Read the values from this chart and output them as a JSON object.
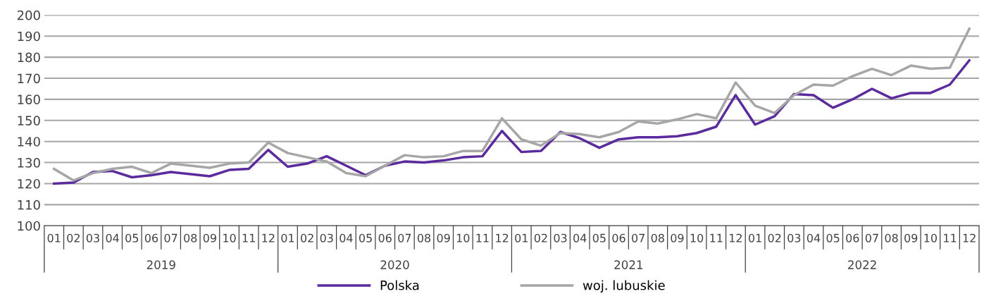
{
  "chart_data": {
    "type": "line",
    "categories": [
      "01",
      "02",
      "03",
      "04",
      "05",
      "06",
      "07",
      "08",
      "09",
      "10",
      "11",
      "12",
      "01",
      "02",
      "03",
      "04",
      "05",
      "06",
      "07",
      "08",
      "09",
      "10",
      "11",
      "12",
      "01",
      "02",
      "03",
      "04",
      "05",
      "06",
      "07",
      "08",
      "09",
      "10",
      "11",
      "12",
      "01",
      "02",
      "03",
      "04",
      "05",
      "06",
      "07",
      "08",
      "09",
      "10",
      "11",
      "12"
    ],
    "annotations": [
      "2019",
      "2020",
      "2021",
      "2022"
    ],
    "series": [
      {
        "name": "Polska",
        "color": "#5b2a9d",
        "values": [
          120,
          120.5,
          125.5,
          126,
          123,
          124,
          125.5,
          124.5,
          123.5,
          126.5,
          127,
          136,
          128,
          129.5,
          133,
          128.5,
          124,
          128.5,
          130.5,
          130,
          131,
          132.5,
          133,
          145,
          135,
          135.5,
          144.5,
          141.5,
          137,
          141,
          142,
          142,
          142.5,
          144,
          147,
          162,
          148,
          152,
          162.5,
          162,
          156,
          160,
          165,
          160.5,
          163,
          163,
          167,
          178.5
        ]
      },
      {
        "name": "woj. lubuskie",
        "color": "#a6a6a6",
        "values": [
          127,
          121.5,
          125,
          127,
          128,
          125,
          129.5,
          128.5,
          127.5,
          129.5,
          130,
          139.5,
          134.5,
          132.5,
          130.5,
          125,
          123.5,
          128.5,
          133.5,
          132.5,
          133,
          135.5,
          135.5,
          151,
          141,
          138,
          144,
          143.5,
          142,
          144.5,
          149.5,
          148.5,
          150.5,
          153,
          151,
          168,
          157,
          153.5,
          162,
          167,
          166.5,
          171,
          174.5,
          171.5,
          176,
          174.5,
          175,
          193.5
        ]
      }
    ],
    "ylim": [
      100,
      200
    ],
    "yticks": [
      100,
      110,
      120,
      130,
      140,
      150,
      160,
      170,
      180,
      190,
      200
    ],
    "grid": "y",
    "legend": "bottom",
    "marker": "none",
    "line_style": "solid"
  }
}
